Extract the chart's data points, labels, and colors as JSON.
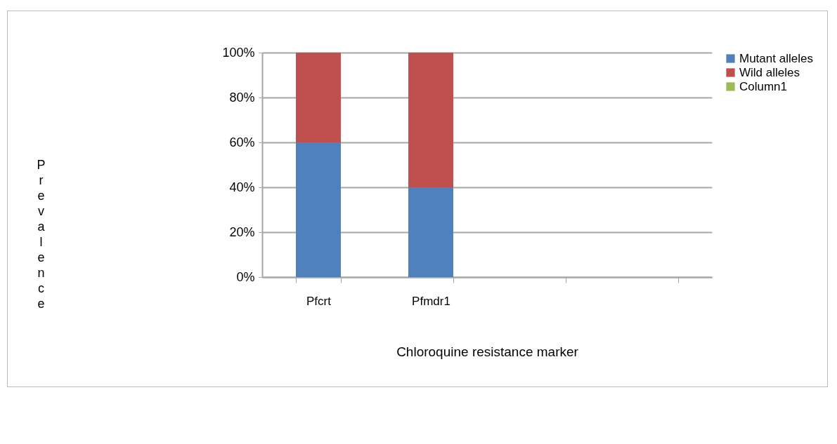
{
  "chart_data": {
    "type": "bar",
    "stacked": true,
    "xlabel": "Chloroquine resistance marker",
    "ylabel": "Prevalence",
    "categories": [
      "Pfcrt",
      "Pfmdr1",
      null,
      null
    ],
    "series": [
      {
        "name": "Mutant alleles",
        "color": "#4f81bd",
        "values": [
          60,
          40,
          null,
          null
        ]
      },
      {
        "name": "Wild alleles",
        "color": "#c0504d",
        "values": [
          40,
          60,
          null,
          null
        ]
      },
      {
        "name": "Column1",
        "color": "#9bbb59",
        "values": [
          null,
          null,
          null,
          null
        ]
      }
    ],
    "ylim": [
      0,
      100
    ],
    "yticks": [
      {
        "value": 0,
        "label": "0%"
      },
      {
        "value": 20,
        "label": "20%"
      },
      {
        "value": 40,
        "label": "40%"
      },
      {
        "value": 60,
        "label": "60%"
      },
      {
        "value": 80,
        "label": "80%"
      },
      {
        "value": 100,
        "label": "100%"
      }
    ],
    "grid": "y",
    "legend": "right"
  }
}
